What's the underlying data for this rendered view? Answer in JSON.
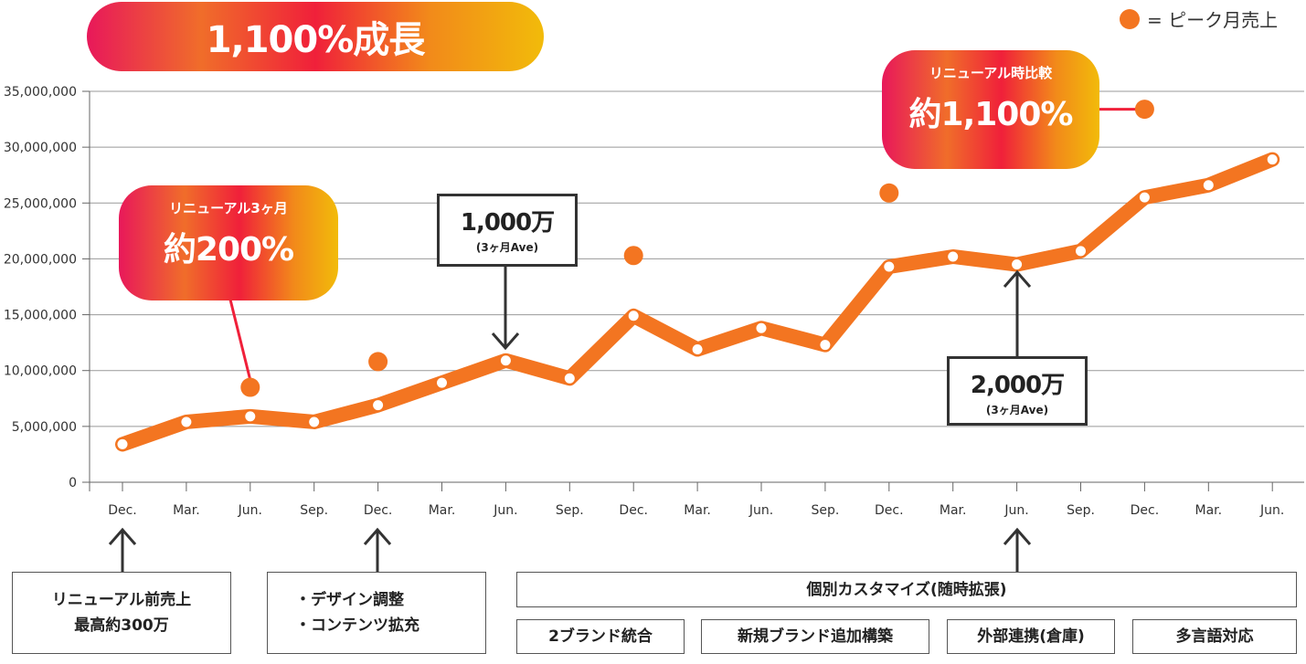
{
  "title": "1,100%成長",
  "legend": {
    "label": "= ピーク月売上",
    "marker_color": "#f37521"
  },
  "callouts": {
    "renewal_3m": {
      "small": "リニューアル3ヶ月",
      "big": "約200%"
    },
    "renewal_total": {
      "small": "リニューアル時比較",
      "big": "約1,100%"
    },
    "ave_1000": {
      "big": "1,000万",
      "small": "(3ヶ月Ave)"
    },
    "ave_2000": {
      "big": "2,000万",
      "small": "(3ヶ月Ave)"
    }
  },
  "notes": {
    "pre_renewal": [
      "リニューアル前売上",
      "最高約300万"
    ],
    "design": [
      "・デザイン調整",
      "・コンテンツ拡充"
    ],
    "custom": "個別カスタマイズ(随時拡張)",
    "brand_merge": "2ブランド統合",
    "new_brand": "新規ブランド追加構築",
    "outsourcing": "外部連携(倉庫)",
    "multilingual": "多言語対応"
  },
  "chart_data": {
    "type": "line",
    "categories": [
      "Dec.",
      "Mar.",
      "Jun.",
      "Sep.",
      "Dec.",
      "Mar.",
      "Jun.",
      "Sep.",
      "Dec.",
      "Mar.",
      "Jun.",
      "Sep.",
      "Dec.",
      "Mar.",
      "Jun.",
      "Sep.",
      "Dec.",
      "Mar.",
      "Jun."
    ],
    "ylim": [
      0,
      35000000
    ],
    "yticks": [
      0,
      5000000,
      10000000,
      15000000,
      20000000,
      25000000,
      30000000,
      35000000
    ],
    "ytick_labels": [
      "0",
      "5,000,000",
      "10,000,000",
      "15,000,000",
      "20,000,000",
      "25,000,000",
      "30,000,000",
      "35,000,000"
    ],
    "grid": true,
    "series": [
      {
        "values": [
          3400000,
          5400000,
          5900000,
          5400000,
          6900000,
          8900000,
          10900000,
          9300000,
          14900000,
          11900000,
          13800000,
          12300000,
          19300000,
          20200000,
          19500000,
          20700000,
          25500000,
          26600000,
          28900000
        ],
        "color": "#f37521"
      },
      {
        "name": "ピーク月売上",
        "type": "scatter",
        "color": "#f37521",
        "points": [
          {
            "x": 2,
            "y": 8500000
          },
          {
            "x": 4,
            "y": 10800000
          },
          {
            "x": 8,
            "y": 20300000
          },
          {
            "x": 12,
            "y": 25900000
          },
          {
            "x": 16,
            "y": 33400000
          }
        ]
      }
    ]
  }
}
